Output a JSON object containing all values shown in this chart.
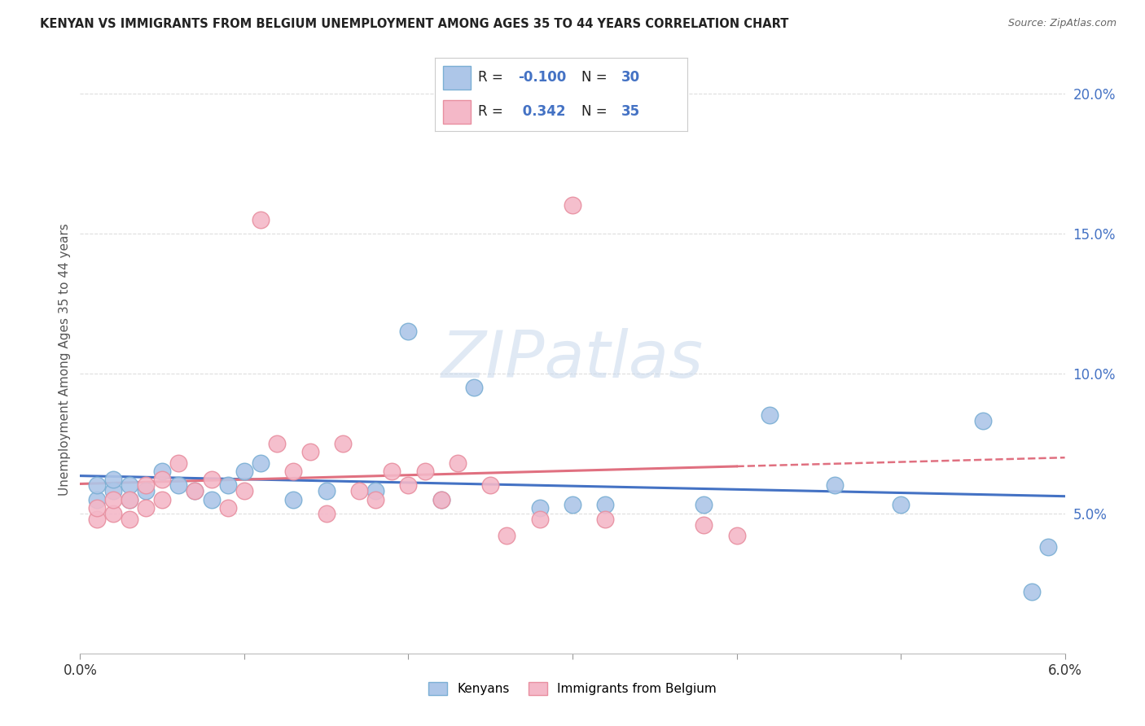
{
  "title": "KENYAN VS IMMIGRANTS FROM BELGIUM UNEMPLOYMENT AMONG AGES 35 TO 44 YEARS CORRELATION CHART",
  "source": "Source: ZipAtlas.com",
  "ylabel": "Unemployment Among Ages 35 to 44 years",
  "legend_kenyans": "Kenyans",
  "legend_belgium": "Immigrants from Belgium",
  "R_kenyans": -0.1,
  "N_kenyans": 30,
  "R_belgium": 0.342,
  "N_belgium": 35,
  "color_kenyans": "#adc6e8",
  "color_kenyans_edge": "#7bafd4",
  "color_belgium": "#f4b8c8",
  "color_belgium_edge": "#e88fa0",
  "color_kenyans_line": "#4472c4",
  "color_belgium_line": "#e07080",
  "kenyans_x": [
    0.001,
    0.001,
    0.002,
    0.002,
    0.003,
    0.003,
    0.004,
    0.005,
    0.006,
    0.007,
    0.008,
    0.009,
    0.01,
    0.011,
    0.013,
    0.015,
    0.018,
    0.02,
    0.022,
    0.024,
    0.028,
    0.03,
    0.032,
    0.038,
    0.042,
    0.046,
    0.05,
    0.055,
    0.058,
    0.059
  ],
  "kenyans_y": [
    0.055,
    0.06,
    0.058,
    0.062,
    0.055,
    0.06,
    0.058,
    0.065,
    0.06,
    0.058,
    0.055,
    0.06,
    0.065,
    0.068,
    0.055,
    0.058,
    0.058,
    0.115,
    0.055,
    0.095,
    0.052,
    0.053,
    0.053,
    0.053,
    0.085,
    0.06,
    0.053,
    0.083,
    0.022,
    0.038
  ],
  "belgium_x": [
    0.001,
    0.001,
    0.002,
    0.002,
    0.003,
    0.003,
    0.004,
    0.004,
    0.005,
    0.005,
    0.006,
    0.007,
    0.008,
    0.009,
    0.01,
    0.011,
    0.012,
    0.013,
    0.014,
    0.015,
    0.016,
    0.017,
    0.018,
    0.019,
    0.02,
    0.021,
    0.022,
    0.023,
    0.025,
    0.026,
    0.028,
    0.03,
    0.032,
    0.038,
    0.04
  ],
  "belgium_y": [
    0.048,
    0.052,
    0.05,
    0.055,
    0.048,
    0.055,
    0.06,
    0.052,
    0.062,
    0.055,
    0.068,
    0.058,
    0.062,
    0.052,
    0.058,
    0.155,
    0.075,
    0.065,
    0.072,
    0.05,
    0.075,
    0.058,
    0.055,
    0.065,
    0.06,
    0.065,
    0.055,
    0.068,
    0.06,
    0.042,
    0.048,
    0.16,
    0.048,
    0.046,
    0.042
  ],
  "yticks_right": [
    0.05,
    0.1,
    0.15,
    0.2
  ],
  "ytick_labels_right": [
    "5.0%",
    "10.0%",
    "15.0%",
    "20.0%"
  ],
  "xmin": 0.0,
  "xmax": 0.06,
  "ymin": 0.0,
  "ymax": 0.21,
  "background_color": "#ffffff",
  "grid_color": "#dddddd"
}
